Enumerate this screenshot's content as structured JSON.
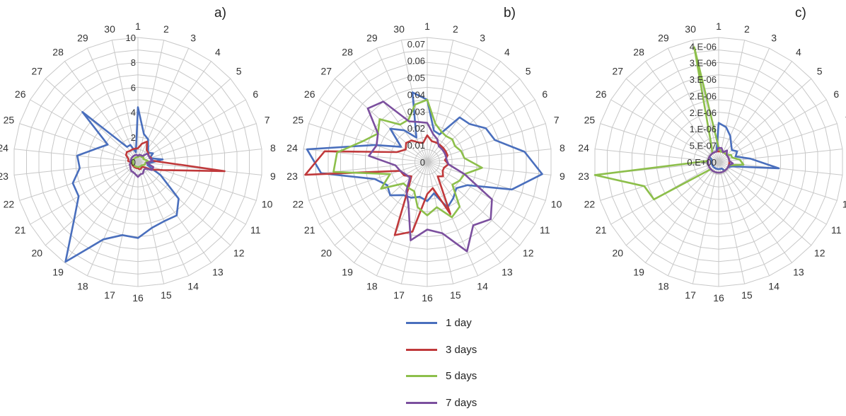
{
  "chart_data": [
    {
      "type": "radar",
      "panel_label": "a)",
      "axes": [
        "1",
        "2",
        "3",
        "4",
        "5",
        "6",
        "7",
        "8",
        "9",
        "10",
        "11",
        "12",
        "13",
        "14",
        "15",
        "16",
        "17",
        "18",
        "19",
        "20",
        "21",
        "22",
        "23",
        "24",
        "25",
        "26",
        "27",
        "28",
        "29",
        "30"
      ],
      "ticks": [
        "0",
        "2",
        "4",
        "6",
        "8",
        "10"
      ],
      "rmax": 10,
      "series": [
        {
          "name": "1 day",
          "values": [
            4.4,
            2.3,
            2.0,
            1.4,
            1.1,
            1.4,
            1.0,
            2.0,
            0.9,
            0.8,
            2.1,
            4.4,
            5.3,
            5.2,
            5.4,
            6.1,
            6.0,
            6.8,
            9.9,
            6.9,
            5.5,
            5.5,
            4.7,
            4.9,
            3.5,
            2.8,
            6.0,
            1.5,
            1.5,
            0.8
          ]
        },
        {
          "name": "3 days",
          "values": [
            1.1,
            1.5,
            1.8,
            1.2,
            1.1,
            1.0,
            1.1,
            1.1,
            7.0,
            2.1,
            1.2,
            0.6,
            0.5,
            0.6,
            0.6,
            0.5,
            0.5,
            0.5,
            0.5,
            0.5,
            0.5,
            0.5,
            0.5,
            0.8,
            0.8,
            1.1,
            1.2,
            1.1,
            1.1,
            1.1
          ]
        },
        {
          "name": "5 days",
          "values": [
            0.4,
            0.5,
            0.5,
            0.5,
            0.6,
            0.5,
            0.6,
            0.8,
            0.6,
            0.6,
            0.5,
            0.4,
            0.4,
            0.4,
            0.4,
            0.4,
            0.4,
            0.4,
            0.4,
            0.4,
            0.4,
            0.4,
            0.4,
            0.4,
            0.4,
            0.4,
            0.4,
            0.4,
            0.4,
            0.4
          ]
        },
        {
          "name": "7 days",
          "values": [
            0.5,
            0.6,
            0.6,
            0.6,
            1.0,
            1.0,
            1.0,
            1.2,
            0.7,
            1.3,
            1.3,
            0.8,
            0.8,
            1.0,
            1.0,
            1.2,
            1.0,
            0.9,
            0.9,
            0.8,
            0.7,
            0.7,
            0.6,
            0.6,
            0.6,
            0.6,
            0.6,
            0.6,
            0.6,
            0.6
          ]
        }
      ]
    },
    {
      "type": "radar",
      "panel_label": "b)",
      "axes": [
        "1",
        "2",
        "3",
        "4",
        "5",
        "6",
        "7",
        "8",
        "9",
        "10",
        "11",
        "12",
        "13",
        "14",
        "15",
        "16",
        "17",
        "18",
        "19",
        "20",
        "21",
        "22",
        "23",
        "24",
        "25",
        "26",
        "27",
        "28",
        "29",
        "30"
      ],
      "ticks": [
        "0",
        "0.01",
        "0.02",
        "0.03",
        "0.04",
        "0.05",
        "0.06",
        "0.07"
      ],
      "rmax": 0.07,
      "series": [
        {
          "name": "1 day",
          "values": [
            0.035,
            0.018,
            0.017,
            0.031,
            0.032,
            0.038,
            0.04,
            0.055,
            0.065,
            0.05,
            0.026,
            0.022,
            0.025,
            0.028,
            0.018,
            0.022,
            0.02,
            0.022,
            0.023,
            0.028,
            0.026,
            0.031,
            0.06,
            0.068,
            0.031,
            0.017,
            0.028,
            0.022,
            0.015,
            0.04
          ]
        },
        {
          "name": "3 days",
          "values": [
            0.015,
            0.012,
            0.012,
            0.012,
            0.012,
            0.012,
            0.012,
            0.01,
            0.012,
            0.01,
            0.01,
            0.012,
            0.01,
            0.032,
            0.015,
            0.018,
            0.04,
            0.045,
            0.018,
            0.012,
            0.015,
            0.016,
            0.069,
            0.058,
            0.018,
            0.014,
            0.016,
            0.015,
            0.012,
            0.011
          ]
        },
        {
          "name": "5 days",
          "values": [
            0.035,
            0.022,
            0.019,
            0.018,
            0.019,
            0.018,
            0.02,
            0.021,
            0.031,
            0.022,
            0.021,
            0.019,
            0.031,
            0.034,
            0.026,
            0.03,
            0.026,
            0.018,
            0.018,
            0.018,
            0.03,
            0.022,
            0.053,
            0.051,
            0.038,
            0.032,
            0.036,
            0.026,
            0.026,
            0.033
          ]
        },
        {
          "name": "7 days",
          "values": [
            0.022,
            0.016,
            0.014,
            0.011,
            0.011,
            0.011,
            0.011,
            0.011,
            0.012,
            0.022,
            0.042,
            0.048,
            0.044,
            0.055,
            0.041,
            0.038,
            0.045,
            0.026,
            0.02,
            0.013,
            0.014,
            0.016,
            0.018,
            0.033,
            0.03,
            0.032,
            0.045,
            0.042,
            0.025,
            0.023
          ]
        }
      ]
    },
    {
      "type": "radar",
      "panel_label": "c)",
      "axes": [
        "1",
        "2",
        "3",
        "4",
        "5",
        "6",
        "7",
        "8",
        "9",
        "10",
        "11",
        "12",
        "13",
        "14",
        "15",
        "16",
        "17",
        "18",
        "19",
        "20",
        "21",
        "22",
        "23",
        "24",
        "25",
        "26",
        "27",
        "28",
        "29",
        "30"
      ],
      "ticks": [
        "0.E+00",
        "5.E-07",
        "1.E-06",
        "2.E-06",
        "2.E-06",
        "3.E-06",
        "3.E-06",
        "4.E-06"
      ],
      "rmax": 3.5e-06,
      "series": [
        {
          "name": "1 day",
          "values": [
            1.1e-06,
            1e-06,
            8e-07,
            6e-07,
            5e-07,
            6e-07,
            5e-07,
            9e-07,
            1.7e-06,
            4e-07,
            3e-07,
            3e-07,
            3e-07,
            2e-07,
            2e-07,
            2e-07,
            2e-07,
            2e-07,
            2e-07,
            2e-07,
            2e-07,
            2e-07,
            2e-07,
            2e-07,
            2e-07,
            3e-07,
            3e-07,
            3e-07,
            3e-07,
            3e-07
          ]
        },
        {
          "name": "3 days",
          "values": [
            3e-07,
            3e-07,
            3e-07,
            3e-07,
            3e-07,
            3e-07,
            3e-07,
            3e-07,
            3e-07,
            3e-07,
            3e-07,
            3e-07,
            3e-07,
            3e-07,
            3e-07,
            3e-07,
            3e-07,
            3e-07,
            3e-07,
            3e-07,
            3e-07,
            3e-07,
            3e-07,
            3e-07,
            3e-07,
            3e-07,
            3e-07,
            3e-07,
            3e-07,
            3e-07
          ]
        },
        {
          "name": "5 days",
          "values": [
            4e-07,
            3e-07,
            3e-07,
            3e-07,
            3e-07,
            4e-07,
            4e-07,
            6e-07,
            7e-07,
            3e-07,
            3e-07,
            3e-07,
            3e-07,
            3e-07,
            3e-07,
            3e-07,
            3e-07,
            3e-07,
            3e-07,
            3e-07,
            2.1e-06,
            2.2e-06,
            3.5e-06,
            3e-07,
            3e-07,
            3e-07,
            3e-07,
            3e-07,
            5e-07,
            3.3e-06
          ]
        },
        {
          "name": "7 days",
          "values": [
            4e-07,
            4e-07,
            3e-07,
            4e-07,
            3e-07,
            3e-07,
            3e-07,
            3e-07,
            4e-07,
            3e-07,
            3e-07,
            3e-07,
            3e-07,
            3e-07,
            3e-07,
            3e-07,
            3e-07,
            3e-07,
            3e-07,
            3e-07,
            3e-07,
            3e-07,
            3e-07,
            3e-07,
            3e-07,
            3e-07,
            3e-07,
            3e-07,
            3e-07,
            3e-07
          ]
        }
      ]
    }
  ],
  "legend": [
    {
      "label": "1 day",
      "color": "#4a6fbd"
    },
    {
      "label": "3 days",
      "color": "#c0393b"
    },
    {
      "label": "5 days",
      "color": "#8dbf4b"
    },
    {
      "label": "7 days",
      "color": "#7b4f9e"
    }
  ]
}
